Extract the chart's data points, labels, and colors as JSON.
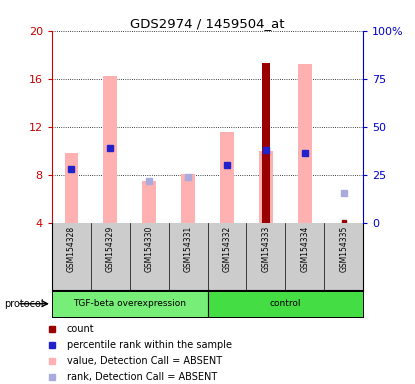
{
  "title": "GDS2974 / 1459504_at",
  "samples": [
    "GSM154328",
    "GSM154329",
    "GSM154330",
    "GSM154331",
    "GSM154332",
    "GSM154333",
    "GSM154334",
    "GSM154335"
  ],
  "ylim_left": [
    4,
    20
  ],
  "ylim_right": [
    0,
    100
  ],
  "yticks_left": [
    4,
    8,
    12,
    16,
    20
  ],
  "ytick_labels_right": [
    "0",
    "25",
    "50",
    "75",
    "100%"
  ],
  "yticks_right": [
    0,
    25,
    50,
    75,
    100
  ],
  "pink_bar_values": [
    9.8,
    16.2,
    7.5,
    8.1,
    11.6,
    10.0,
    17.2,
    null
  ],
  "dark_red_bar_values": [
    null,
    null,
    null,
    null,
    null,
    17.3,
    null,
    null
  ],
  "blue_square_values": [
    8.5,
    10.2,
    null,
    null,
    8.8,
    10.1,
    9.8,
    null
  ],
  "light_blue_sq_values": [
    null,
    null,
    7.5,
    7.8,
    null,
    null,
    null,
    6.5
  ],
  "tiny_red_values": [
    null,
    null,
    null,
    null,
    null,
    null,
    null,
    4.1
  ],
  "bar_width": 0.35,
  "pink_color": "#ffb0b0",
  "dark_red_color": "#990000",
  "blue_color": "#2222cc",
  "light_blue_color": "#aaaadd",
  "left_axis_color": "#cc0000",
  "right_axis_color": "#0000cc",
  "label_area_color": "#cccccc",
  "group1_color": "#77ee77",
  "group2_color": "#44dd44",
  "group1_label": "TGF-beta overexpression",
  "group2_label": "control",
  "protocol_label": "protocol",
  "legend_items": [
    {
      "color": "#990000",
      "label": "count"
    },
    {
      "color": "#2222cc",
      "label": "percentile rank within the sample"
    },
    {
      "color": "#ffb0b0",
      "label": "value, Detection Call = ABSENT"
    },
    {
      "color": "#aaaadd",
      "label": "rank, Detection Call = ABSENT"
    }
  ]
}
